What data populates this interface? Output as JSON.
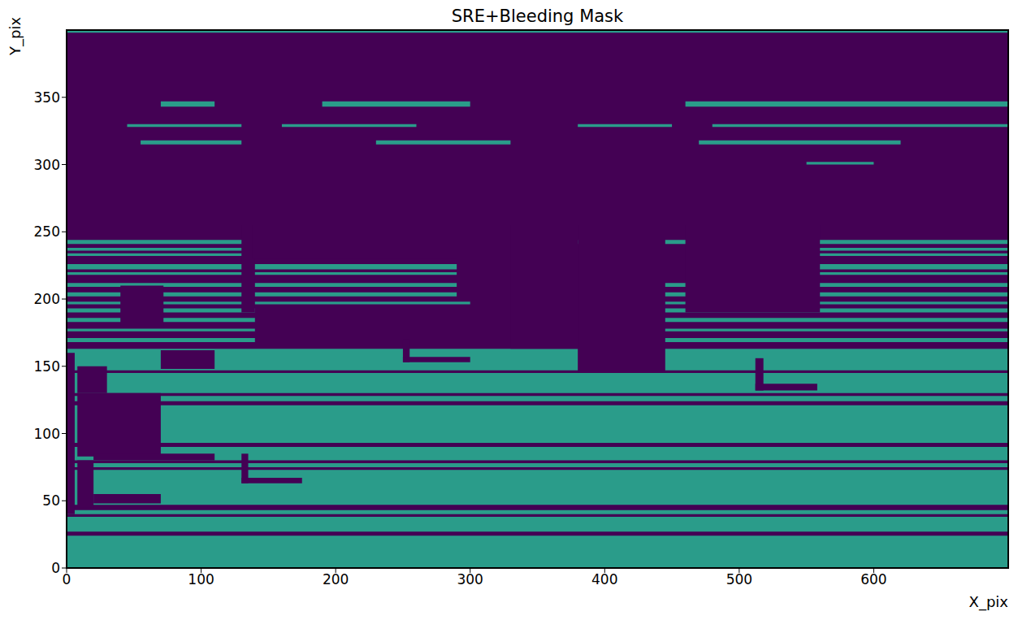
{
  "chart_data": {
    "type": "heatmap",
    "title": "SRE+Bleeding Mask",
    "x_label": "X_pix",
    "y_label": "Y_pix",
    "xlim": [
      0,
      700
    ],
    "ylim": [
      0,
      400
    ],
    "xticks": [
      0,
      100,
      200,
      300,
      400,
      500,
      600
    ],
    "yticks": [
      0,
      50,
      100,
      150,
      200,
      250,
      300,
      350
    ],
    "colors": [
      "#440154",
      "#2a9c8a"
    ],
    "cells": [
      [
        0,
        700,
        0,
        400,
        1
      ],
      [
        0,
        700,
        24,
        27,
        0
      ],
      [
        0,
        700,
        38,
        40,
        0
      ],
      [
        0,
        700,
        43,
        47,
        0
      ],
      [
        0,
        700,
        73,
        75,
        0
      ],
      [
        0,
        700,
        78,
        80,
        0
      ],
      [
        0,
        700,
        90,
        93,
        0
      ],
      [
        0,
        700,
        121,
        124,
        0
      ],
      [
        0,
        700,
        128,
        130,
        0
      ],
      [
        0,
        700,
        145,
        147,
        0
      ],
      [
        0,
        700,
        163,
        400,
        0
      ],
      [
        0,
        140,
        168,
        171,
        1
      ],
      [
        440,
        700,
        168,
        171,
        1
      ],
      [
        0,
        140,
        176,
        178,
        1
      ],
      [
        440,
        700,
        176,
        178,
        1
      ],
      [
        0,
        140,
        183,
        186,
        1
      ],
      [
        440,
        700,
        183,
        186,
        1
      ],
      [
        0,
        140,
        190,
        193,
        1
      ],
      [
        440,
        700,
        190,
        193,
        1
      ],
      [
        0,
        300,
        196,
        198,
        1
      ],
      [
        440,
        700,
        196,
        198,
        1
      ],
      [
        0,
        300,
        202,
        205,
        1
      ],
      [
        440,
        700,
        202,
        205,
        1
      ],
      [
        0,
        330,
        209,
        212,
        1
      ],
      [
        440,
        700,
        209,
        212,
        1
      ],
      [
        0,
        330,
        218,
        220,
        1
      ],
      [
        520,
        700,
        218,
        220,
        1
      ],
      [
        0,
        330,
        222,
        226,
        1
      ],
      [
        540,
        700,
        222,
        226,
        1
      ],
      [
        0,
        140,
        232,
        234,
        1
      ],
      [
        540,
        700,
        232,
        234,
        1
      ],
      [
        0,
        140,
        236,
        238,
        1
      ],
      [
        540,
        700,
        236,
        238,
        1
      ],
      [
        0,
        140,
        241,
        244,
        1
      ],
      [
        350,
        700,
        241,
        244,
        1
      ],
      [
        70,
        110,
        343,
        347,
        1
      ],
      [
        190,
        300,
        343,
        347,
        1
      ],
      [
        460,
        700,
        343,
        347,
        1
      ],
      [
        45,
        130,
        328,
        330,
        1
      ],
      [
        160,
        260,
        328,
        330,
        1
      ],
      [
        380,
        450,
        328,
        330,
        1
      ],
      [
        480,
        700,
        328,
        330,
        1
      ],
      [
        55,
        130,
        315,
        318,
        1
      ],
      [
        230,
        330,
        315,
        318,
        1
      ],
      [
        470,
        620,
        315,
        318,
        1
      ],
      [
        550,
        600,
        300,
        302,
        1
      ],
      [
        0,
        700,
        398,
        400,
        1
      ],
      [
        40,
        72,
        180,
        210,
        0
      ],
      [
        130,
        140,
        190,
        255,
        0
      ],
      [
        138,
        300,
        230,
        255,
        0
      ],
      [
        290,
        350,
        200,
        255,
        0
      ],
      [
        330,
        380,
        163,
        255,
        0
      ],
      [
        380,
        445,
        145,
        255,
        0
      ],
      [
        460,
        560,
        190,
        255,
        0
      ],
      [
        0,
        6,
        40,
        160,
        0
      ],
      [
        8,
        70,
        83,
        130,
        0
      ],
      [
        8,
        30,
        130,
        150,
        0
      ],
      [
        8,
        20,
        45,
        80,
        0
      ],
      [
        20,
        70,
        48,
        55,
        0
      ],
      [
        20,
        110,
        80,
        85,
        0
      ],
      [
        130,
        135,
        63,
        85,
        0
      ],
      [
        130,
        175,
        63,
        67,
        0
      ],
      [
        250,
        255,
        153,
        170,
        0
      ],
      [
        250,
        300,
        153,
        157,
        0
      ],
      [
        512,
        518,
        132,
        156,
        0
      ],
      [
        512,
        558,
        132,
        137,
        0
      ],
      [
        70,
        110,
        148,
        162,
        0
      ]
    ]
  }
}
